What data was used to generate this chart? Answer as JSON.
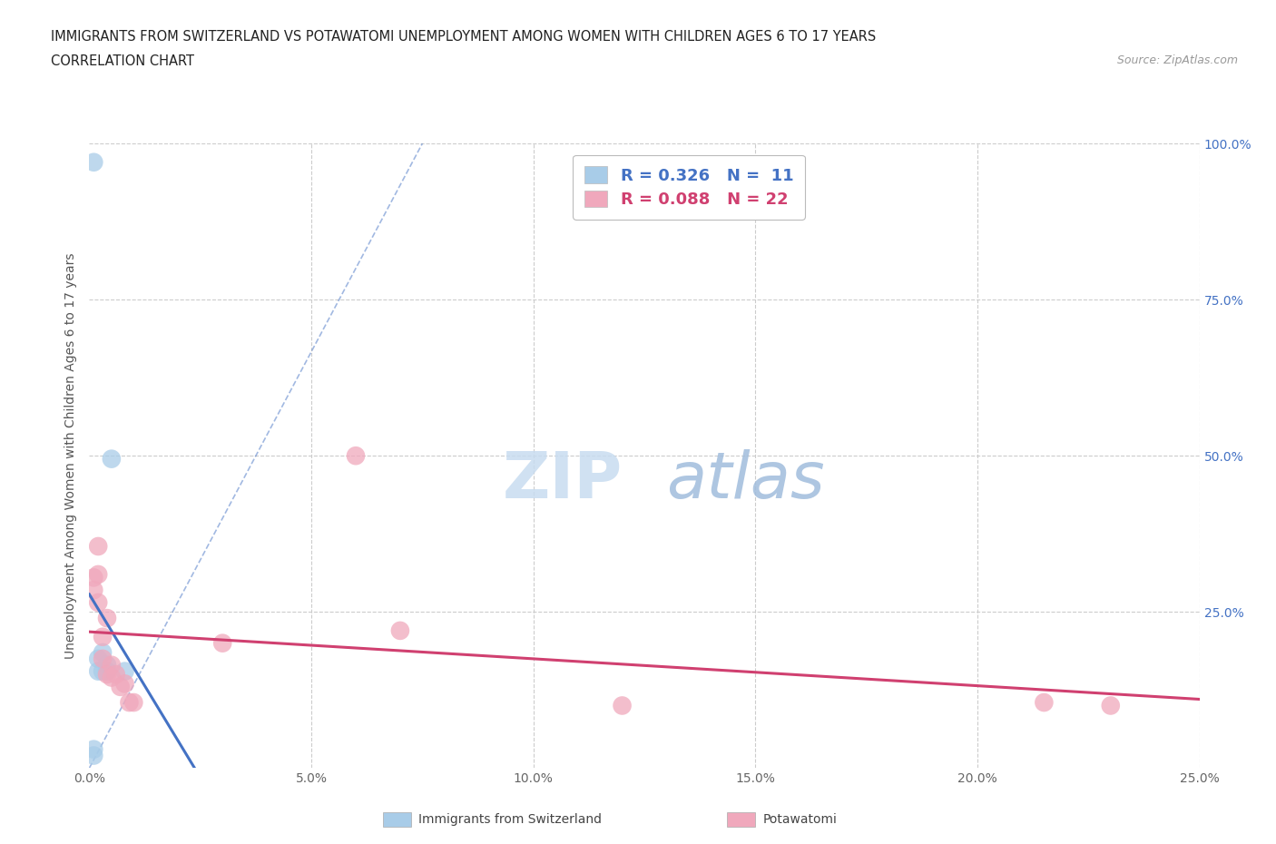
{
  "title_line1": "IMMIGRANTS FROM SWITZERLAND VS POTAWATOMI UNEMPLOYMENT AMONG WOMEN WITH CHILDREN AGES 6 TO 17 YEARS",
  "title_line2": "CORRELATION CHART",
  "source_text": "Source: ZipAtlas.com",
  "ylabel": "Unemployment Among Women with Children Ages 6 to 17 years",
  "xlim": [
    0.0,
    0.25
  ],
  "ylim": [
    0.0,
    1.0
  ],
  "xticks": [
    0.0,
    0.05,
    0.1,
    0.15,
    0.2,
    0.25
  ],
  "xtick_labels": [
    "0.0%",
    "5.0%",
    "10.0%",
    "15.0%",
    "20.0%",
    "25.0%"
  ],
  "yticks": [
    0.0,
    0.25,
    0.5,
    0.75,
    1.0
  ],
  "ytick_labels_right": [
    "",
    "25.0%",
    "50.0%",
    "75.0%",
    "100.0%"
  ],
  "swiss_color": "#A8CCE8",
  "potawatomi_color": "#F0A8BC",
  "swiss_line_color": "#4472C4",
  "potawatomi_line_color": "#D04070",
  "swiss_R": 0.326,
  "swiss_N": 11,
  "potawatomi_R": 0.088,
  "potawatomi_N": 22,
  "watermark_zip": "ZIP",
  "watermark_atlas": "atlas",
  "swiss_scatter_x": [
    0.001,
    0.001,
    0.001,
    0.002,
    0.002,
    0.003,
    0.003,
    0.004,
    0.004,
    0.005,
    0.008
  ],
  "swiss_scatter_y": [
    0.97,
    0.03,
    0.02,
    0.175,
    0.155,
    0.185,
    0.155,
    0.165,
    0.155,
    0.495,
    0.155
  ],
  "potawatomi_scatter_x": [
    0.001,
    0.001,
    0.002,
    0.002,
    0.002,
    0.003,
    0.003,
    0.004,
    0.004,
    0.005,
    0.005,
    0.006,
    0.007,
    0.008,
    0.009,
    0.01,
    0.03,
    0.06,
    0.07,
    0.12,
    0.215,
    0.23
  ],
  "potawatomi_scatter_y": [
    0.305,
    0.285,
    0.355,
    0.31,
    0.265,
    0.21,
    0.175,
    0.24,
    0.15,
    0.165,
    0.145,
    0.15,
    0.13,
    0.135,
    0.105,
    0.105,
    0.2,
    0.5,
    0.22,
    0.1,
    0.105,
    0.1
  ],
  "background_color": "#FFFFFF",
  "grid_color": "#CCCCCC"
}
